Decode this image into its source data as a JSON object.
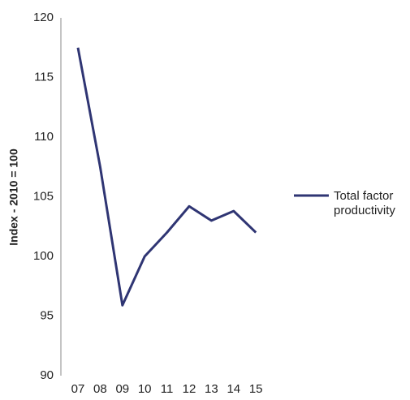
{
  "chart_data": {
    "type": "line",
    "y_label": "Index - 2010 = 100",
    "categories": [
      "07",
      "08",
      "09",
      "10",
      "11",
      "12",
      "13",
      "14",
      "15"
    ],
    "series": [
      {
        "name": "Total factor productivity",
        "color": "#2f3573",
        "values": [
          117.5,
          107.5,
          95.9,
          100,
          102,
          104.2,
          103,
          103.8,
          102
        ]
      }
    ],
    "ylim": [
      90,
      120
    ],
    "yticks": [
      90,
      95,
      100,
      105,
      110,
      115,
      120
    ],
    "grid": false,
    "legend": "right"
  }
}
